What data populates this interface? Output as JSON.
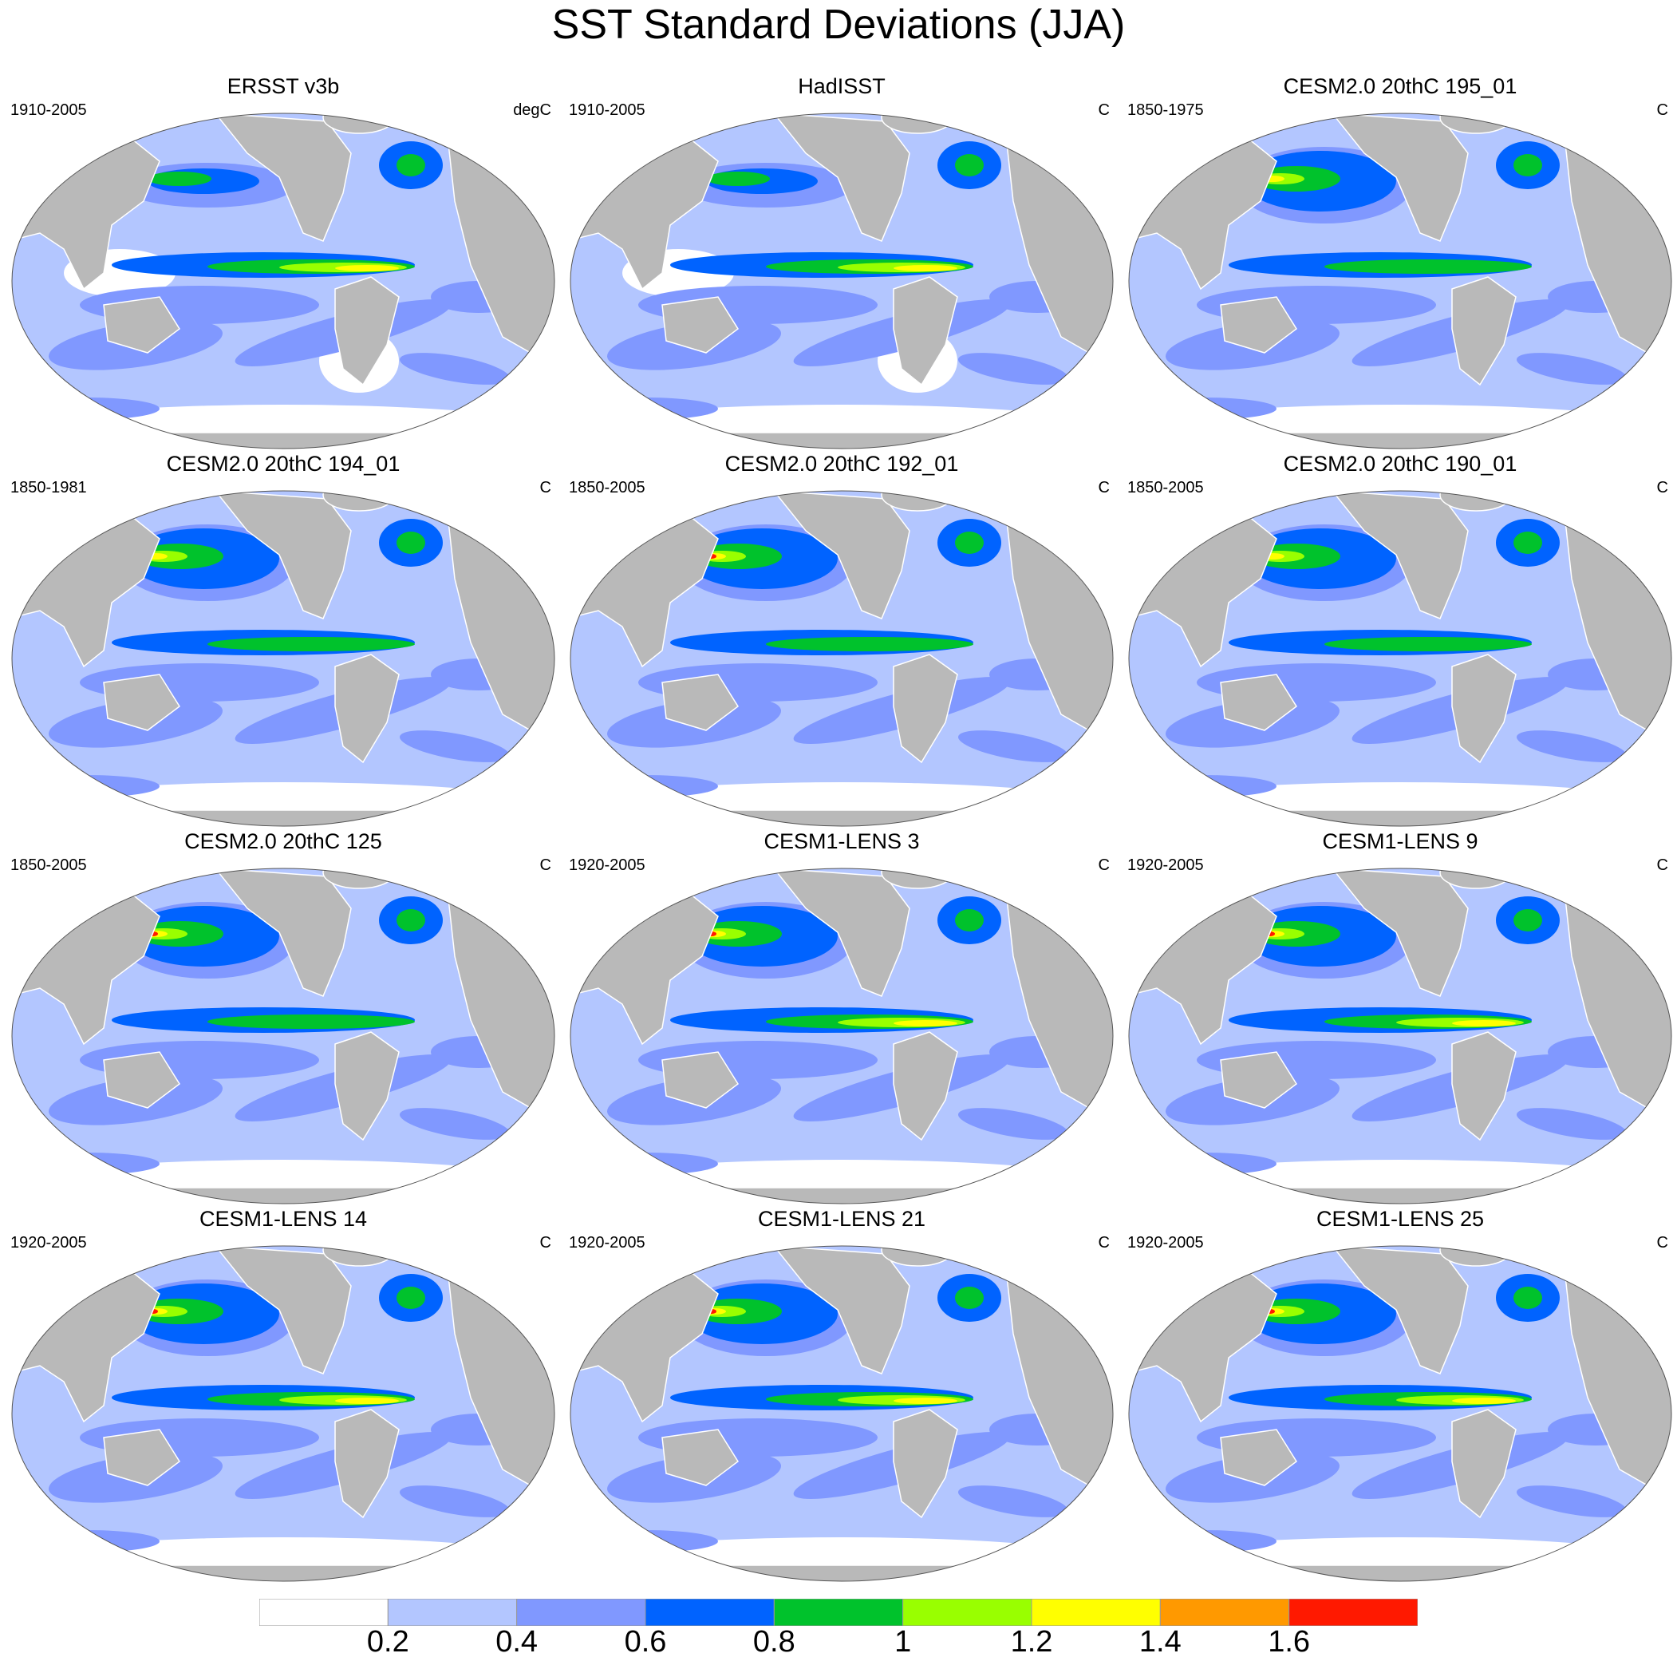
{
  "title": "SST Standard Deviations (JJA)",
  "panels": [
    {
      "title": "ERSST v3b",
      "period": "1910-2005",
      "unit": "degC"
    },
    {
      "title": "HadISST",
      "period": "1910-2005",
      "unit": "C"
    },
    {
      "title": "CESM2.0 20thC 195_01",
      "period": "1850-1975",
      "unit": "C"
    },
    {
      "title": "CESM2.0 20thC 194_01",
      "period": "1850-1981",
      "unit": "C"
    },
    {
      "title": "CESM2.0 20thC 192_01",
      "period": "1850-2005",
      "unit": "C"
    },
    {
      "title": "CESM2.0 20thC 190_01",
      "period": "1850-2005",
      "unit": "C"
    },
    {
      "title": "CESM2.0 20thC 125",
      "period": "1850-2005",
      "unit": "C"
    },
    {
      "title": "CESM1-LENS 3",
      "period": "1920-2005",
      "unit": "C"
    },
    {
      "title": "CESM1-LENS 9",
      "period": "1920-2005",
      "unit": "C"
    },
    {
      "title": "CESM1-LENS 14",
      "period": "1920-2005",
      "unit": "C"
    },
    {
      "title": "CESM1-LENS 21",
      "period": "1920-2005",
      "unit": "C"
    },
    {
      "title": "CESM1-LENS 25",
      "period": "1920-2005",
      "unit": "C"
    }
  ],
  "colorbar": {
    "labels": [
      "0.2",
      "0.4",
      "0.6",
      "0.8",
      "1",
      "1.2",
      "1.4",
      "1.6"
    ],
    "colors": [
      "#ffffff",
      "#b3c6ff",
      "#8098ff",
      "#0063ff",
      "#00c22c",
      "#99ff00",
      "#ffff00",
      "#ff9900",
      "#ff1900"
    ]
  },
  "map_colors": {
    "land": "#b9b9b9",
    "ocean_base": "#b3c6ff"
  }
}
